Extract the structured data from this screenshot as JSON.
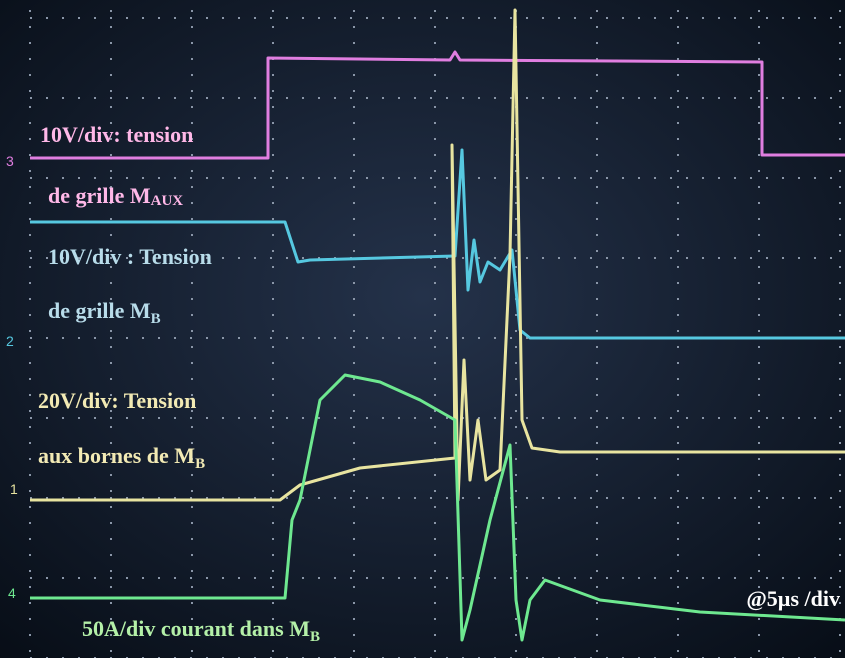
{
  "labels": [
    {
      "line1": "10V/div: tension",
      "line2": "de grille M",
      "sub": "AUX"
    },
    {
      "line1": "10V/div : Tension",
      "line2": "de grille M",
      "sub": "B"
    },
    {
      "line1": "20V/div: Tension",
      "line2": "aux bornes de  M",
      "sub": "B"
    },
    {
      "line2": "50A/div courant dans  M",
      "sub": "B"
    }
  ],
  "timebase": "@5µs /div",
  "channels": [
    "3",
    "2",
    "1",
    "4"
  ]
}
